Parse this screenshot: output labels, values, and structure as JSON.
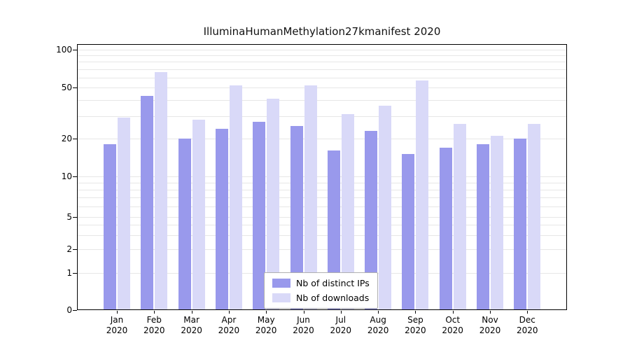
{
  "title": "IlluminaHumanMethylation27kmanifest 2020",
  "chart_data": {
    "type": "bar",
    "title": "IlluminaHumanMethylation27kmanifest 2020",
    "categories": [
      "Jan 2020",
      "Feb 2020",
      "Mar 2020",
      "Apr 2020",
      "May 2020",
      "Jun 2020",
      "Jul 2020",
      "Aug 2020",
      "Sep 2020",
      "Oct 2020",
      "Nov 2020",
      "Dec 2020"
    ],
    "series": [
      {
        "name": "Nb of distinct IPs",
        "color": "#9999ec",
        "values": [
          18,
          43,
          20,
          24,
          27,
          25,
          16,
          23,
          15,
          17,
          18,
          20
        ]
      },
      {
        "name": "Nb of downloads",
        "color": "#d9d9f8",
        "values": [
          29,
          66,
          28,
          52,
          41,
          52,
          31,
          36,
          57,
          26,
          21,
          26
        ]
      }
    ],
    "yscale": "log",
    "yticks": [
      0,
      1,
      2,
      5,
      10,
      20,
      50,
      100
    ],
    "ylim": [
      0,
      100
    ],
    "grid": true,
    "legend_position": "lower center"
  }
}
